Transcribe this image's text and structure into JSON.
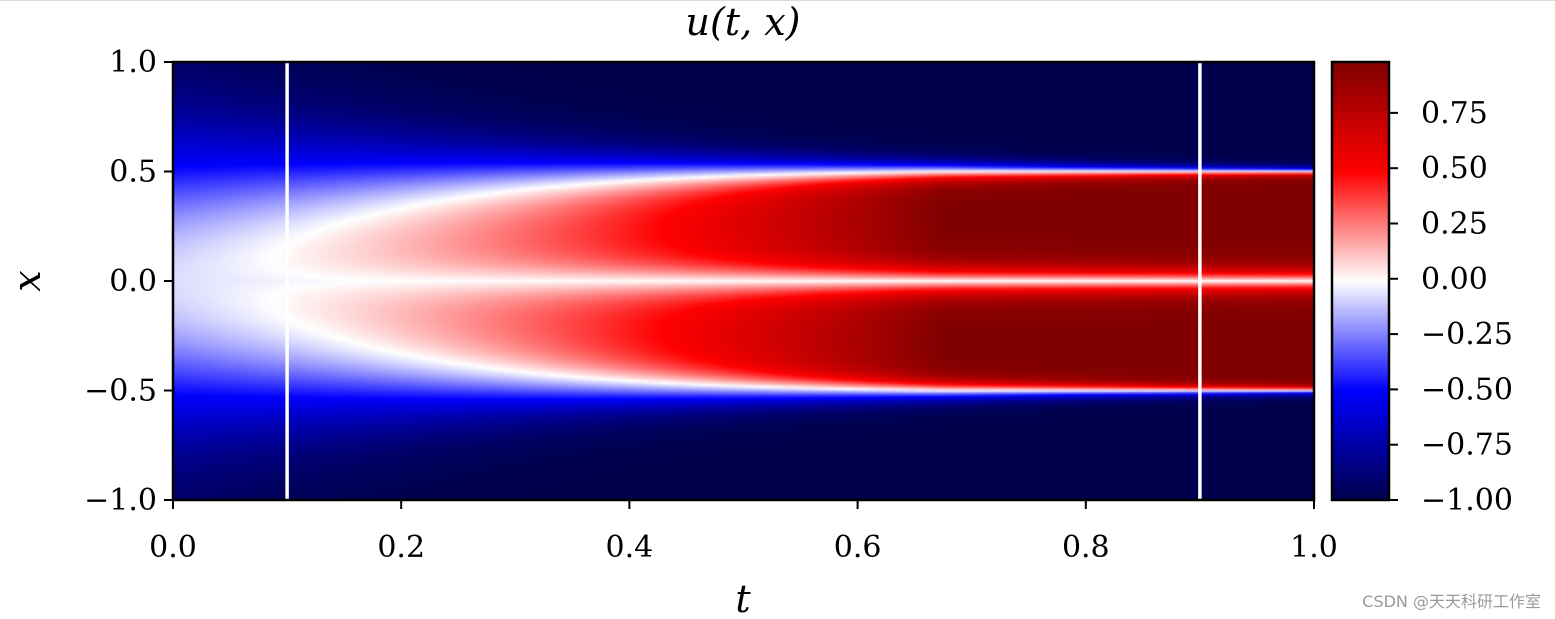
{
  "chart_data": {
    "type": "heatmap",
    "title": "u(t, x)",
    "xlabel": "t",
    "ylabel": "x",
    "xlim": [
      0.0,
      1.0
    ],
    "ylim": [
      -1.0,
      1.0
    ],
    "xticks": [
      "0.0",
      "0.2",
      "0.4",
      "0.6",
      "0.8",
      "1.0"
    ],
    "yticks": [
      "1.0",
      "0.5",
      "0.0",
      "−0.5",
      "−1.0"
    ],
    "ytick_values": [
      1.0,
      0.5,
      0.0,
      -0.5,
      -1.0
    ],
    "xtick_values": [
      0.0,
      0.2,
      0.4,
      0.6,
      0.8,
      1.0
    ],
    "colormap": "seismic",
    "clim": [
      -1.0,
      0.98
    ],
    "colorbar_ticks": [
      "0.75",
      "0.50",
      "0.25",
      "0.00",
      "−0.25",
      "−0.50",
      "−0.75",
      "−1.00"
    ],
    "colorbar_tick_values": [
      0.75,
      0.5,
      0.25,
      0.0,
      -0.25,
      -0.5,
      -0.75,
      -1.0
    ],
    "vertical_lines": [
      {
        "t": 0.1,
        "color": "#ffffff"
      },
      {
        "t": 0.9,
        "color": "#ffffff"
      }
    ],
    "field_description_values": {
      "u_at_t0_interior": 0.0,
      "u_at_t1_interior": 0.98,
      "u_outside_band": -1.0,
      "band_edges_x": [
        -0.5,
        0.5
      ]
    },
    "colors": {
      "deep_blue": "#00004c",
      "blue": "#0000ff",
      "white": "#ffffff",
      "red": "#ff0000",
      "dark_red": "#800000"
    }
  },
  "watermark": "CSDN @天天科研工作室"
}
